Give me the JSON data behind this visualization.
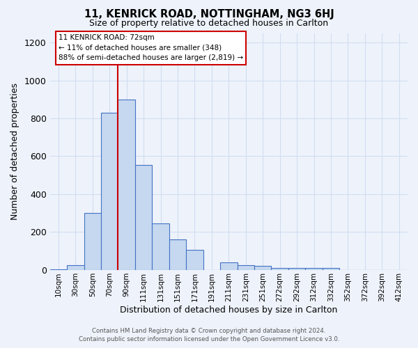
{
  "title": "11, KENRICK ROAD, NOTTINGHAM, NG3 6HJ",
  "subtitle": "Size of property relative to detached houses in Carlton",
  "xlabel": "Distribution of detached houses by size in Carlton",
  "ylabel": "Number of detached properties",
  "footer_line1": "Contains HM Land Registry data © Crown copyright and database right 2024.",
  "footer_line2": "Contains public sector information licensed under the Open Government Licence v3.0.",
  "categories": [
    "10sqm",
    "30sqm",
    "50sqm",
    "70sqm",
    "90sqm",
    "111sqm",
    "131sqm",
    "151sqm",
    "171sqm",
    "191sqm",
    "211sqm",
    "231sqm",
    "251sqm",
    "272sqm",
    "292sqm",
    "312sqm",
    "332sqm",
    "352sqm",
    "372sqm",
    "392sqm",
    "412sqm"
  ],
  "values": [
    2,
    25,
    300,
    830,
    900,
    555,
    245,
    160,
    105,
    0,
    38,
    25,
    20,
    8,
    10,
    10,
    10,
    0,
    0,
    0,
    0
  ],
  "bar_color": "#c5d8f0",
  "bar_edge_color": "#4472c4",
  "background_color": "#eef3fb",
  "grid_color": "#d0ddf0",
  "annotation_line1": "11 KENRICK ROAD: 72sqm",
  "annotation_line2": "← 11% of detached houses are smaller (348)",
  "annotation_line3": "88% of semi-detached houses are larger (2,819) →",
  "annotation_box_color": "white",
  "annotation_box_edge": "#cc0000",
  "red_line_index": 3,
  "ylim": [
    0,
    1250
  ],
  "yticks": [
    0,
    200,
    400,
    600,
    800,
    1000,
    1200
  ]
}
